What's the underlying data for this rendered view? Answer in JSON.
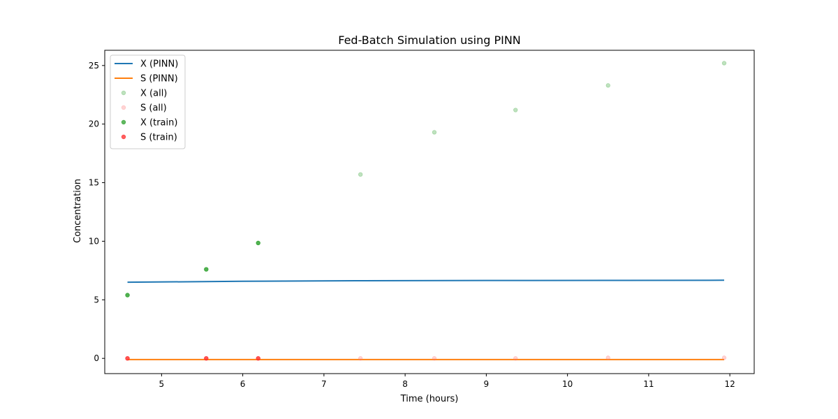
{
  "chart_data": {
    "type": "line",
    "title": "Fed-Batch Simulation using PINN",
    "xlabel": "Time (hours)",
    "ylabel": "Concentration",
    "xlim": [
      4.3,
      12.3
    ],
    "ylim": [
      -1.3,
      26.3
    ],
    "xticks": [
      5,
      6,
      7,
      8,
      9,
      10,
      11,
      12
    ],
    "yticks": [
      0,
      5,
      10,
      15,
      20,
      25
    ],
    "grid": false,
    "legend_position": "top-left",
    "series": [
      {
        "name": "X (PINN)",
        "kind": "line",
        "color": "#1f77b4",
        "x": [
          4.58,
          6.0,
          7.5,
          9.0,
          10.5,
          11.93
        ],
        "y": [
          6.5,
          6.58,
          6.63,
          6.65,
          6.66,
          6.67
        ]
      },
      {
        "name": "S (PINN)",
        "kind": "line",
        "color": "#ff7f0e",
        "x": [
          4.58,
          11.93
        ],
        "y": [
          -0.1,
          -0.1
        ]
      },
      {
        "name": "X (all)",
        "kind": "scatter",
        "color": "#2ca02c",
        "opacity": 0.3,
        "x": [
          4.58,
          5.55,
          6.19,
          7.45,
          8.36,
          9.36,
          10.5,
          11.93
        ],
        "y": [
          5.4,
          7.6,
          9.85,
          15.7,
          19.3,
          21.2,
          23.3,
          25.2
        ]
      },
      {
        "name": "S (all)",
        "kind": "scatter",
        "color": "#ff6f6f",
        "opacity": 0.3,
        "x": [
          4.58,
          5.55,
          6.19,
          7.45,
          8.36,
          9.36,
          10.5,
          11.93
        ],
        "y": [
          0.0,
          0.0,
          0.0,
          0.0,
          0.0,
          0.0,
          0.05,
          0.05
        ]
      },
      {
        "name": "X (train)",
        "kind": "scatter",
        "color": "#2ca02c",
        "opacity": 0.75,
        "x": [
          4.58,
          5.55,
          6.19
        ],
        "y": [
          5.4,
          7.6,
          9.85
        ]
      },
      {
        "name": "S (train)",
        "kind": "scatter",
        "color": "#ff2a2a",
        "opacity": 0.75,
        "x": [
          4.58,
          5.55,
          6.19
        ],
        "y": [
          0.0,
          0.0,
          0.0
        ]
      }
    ]
  }
}
